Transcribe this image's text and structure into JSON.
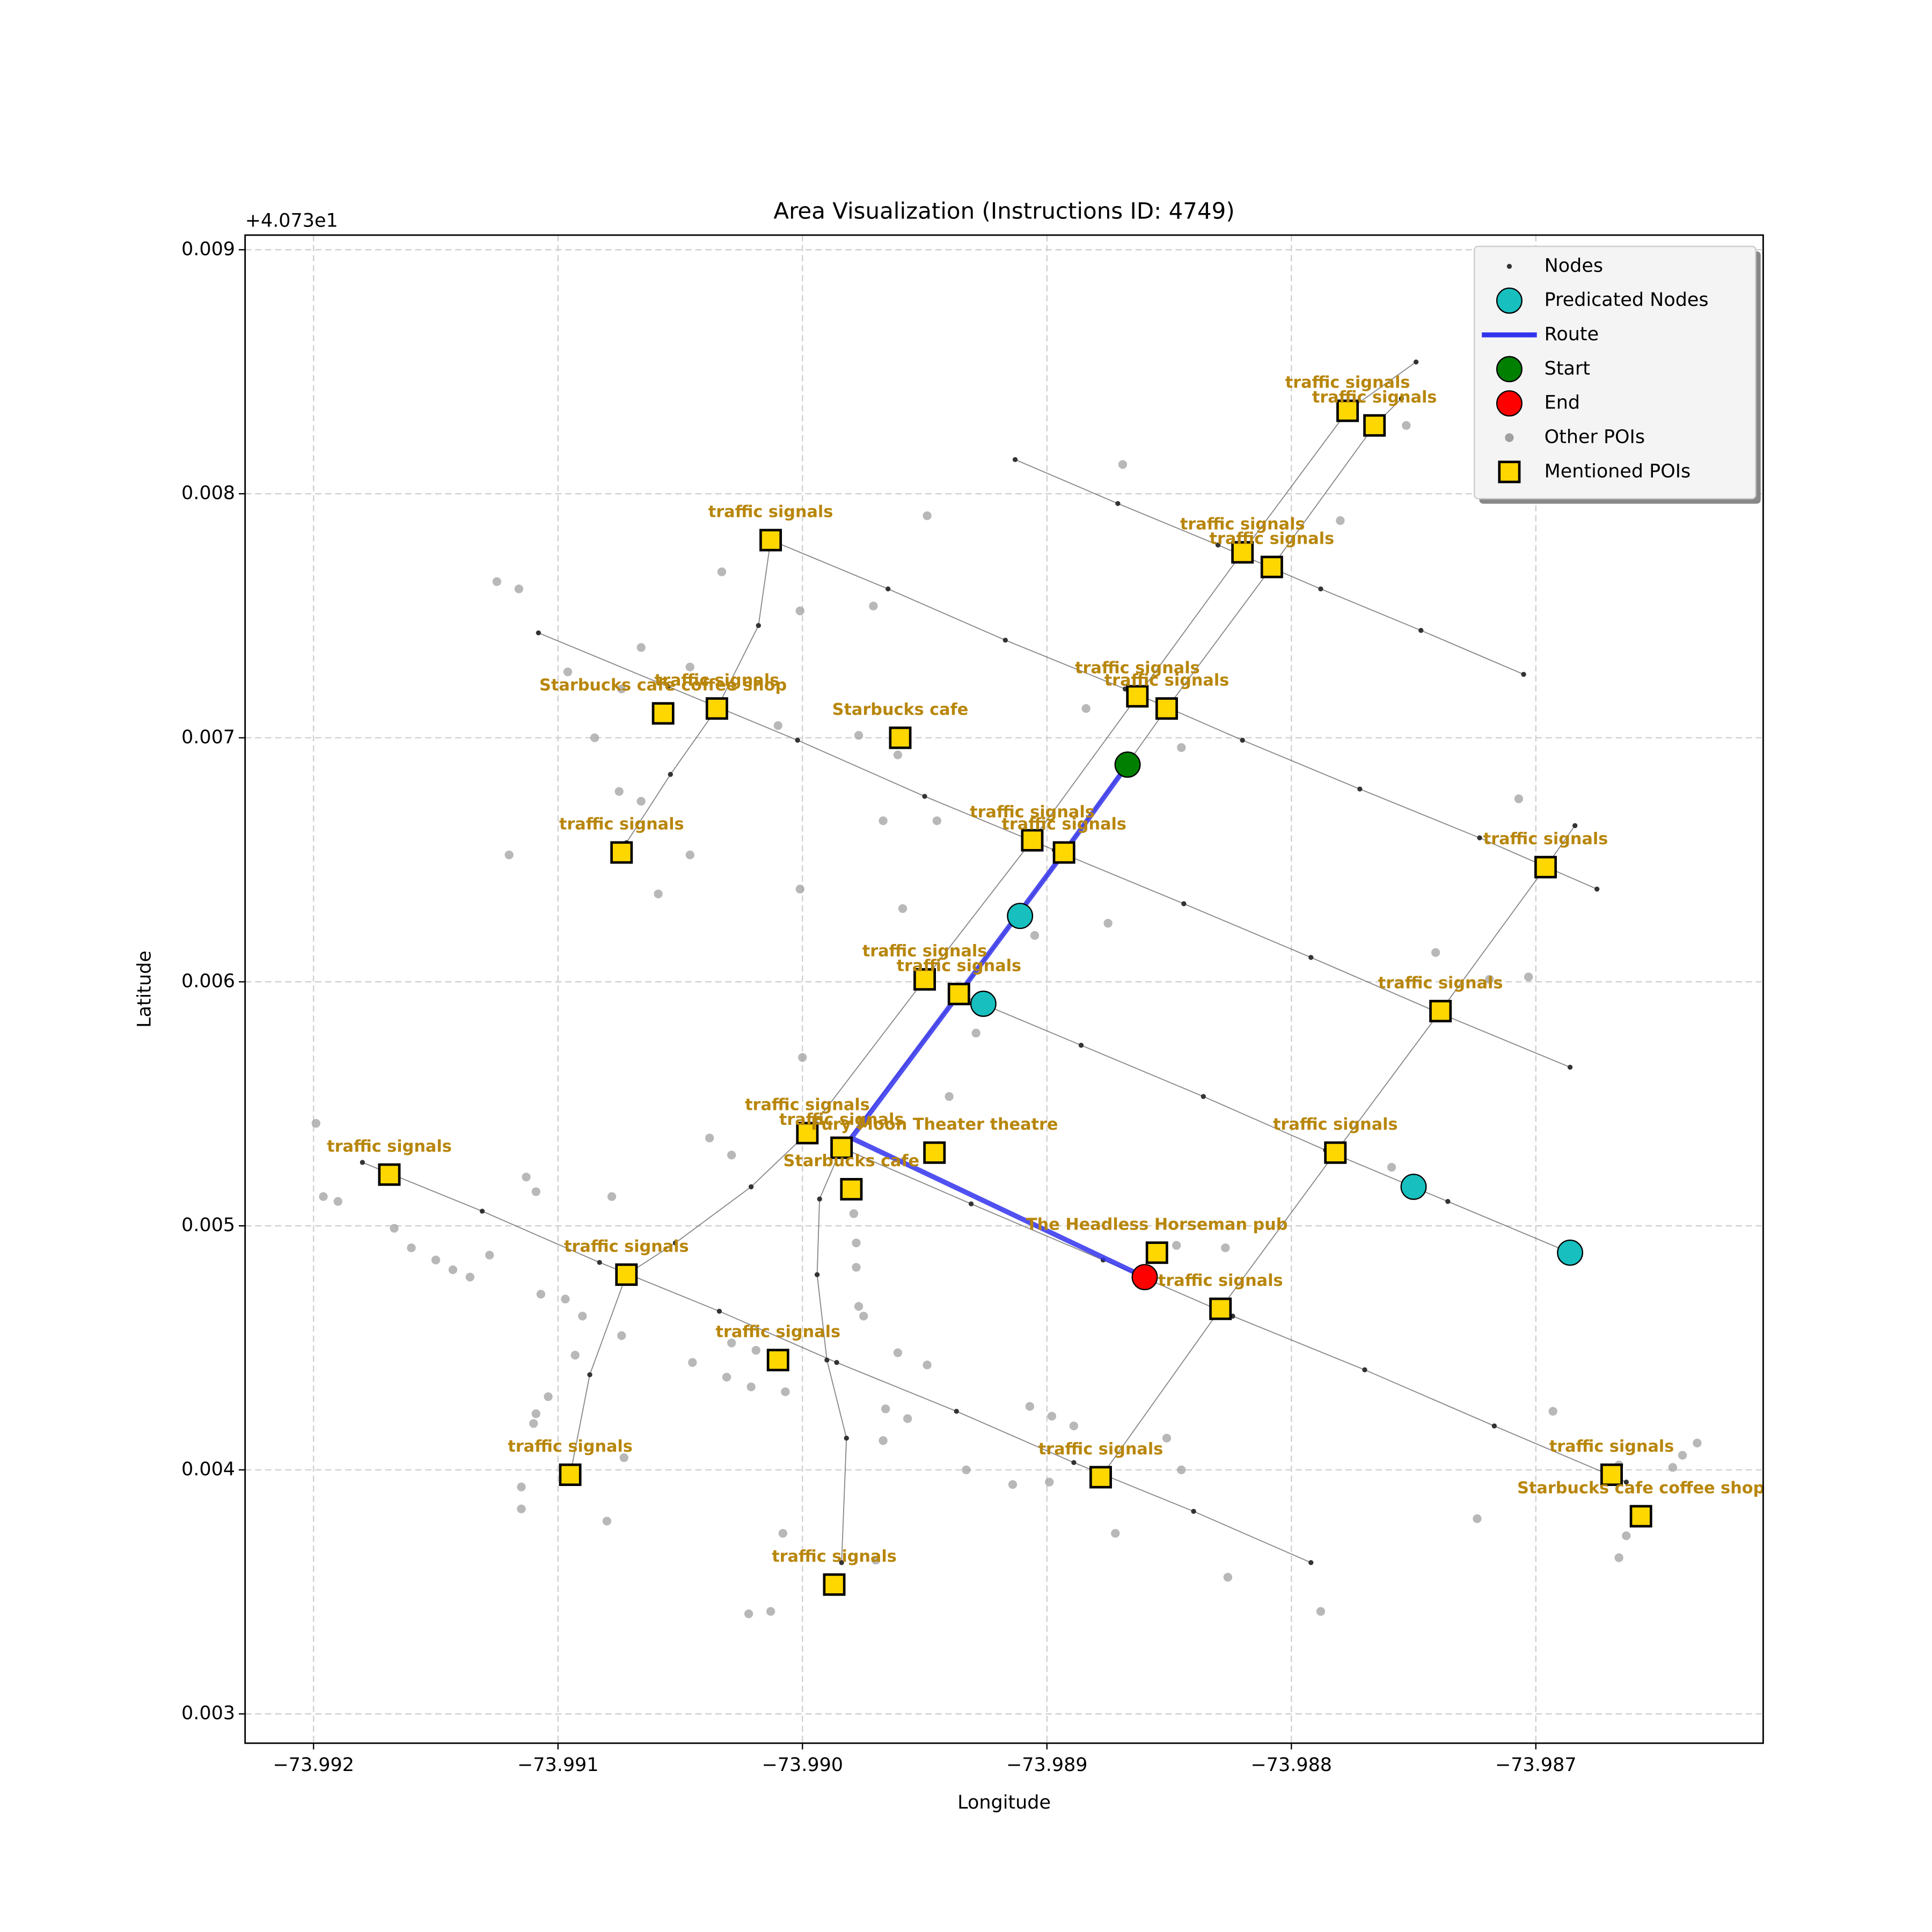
{
  "chart_data": {
    "type": "scatter",
    "title": "Area Visualization (Instructions ID: 4749)",
    "x_label": "Longitude",
    "y_label": "Latitude",
    "y_offset_text": "+4.073e1",
    "xlim": [
      -73.99228,
      -73.98607
    ],
    "ylim": [
      0.00288,
      0.00906
    ],
    "xticks": [
      {
        "value": -73.992,
        "label": "−73.992"
      },
      {
        "value": -73.991,
        "label": "−73.991"
      },
      {
        "value": -73.99,
        "label": "−73.990"
      },
      {
        "value": -73.989,
        "label": "−73.989"
      },
      {
        "value": -73.988,
        "label": "−73.988"
      },
      {
        "value": -73.987,
        "label": "−73.987"
      }
    ],
    "yticks": [
      0.003,
      0.004,
      0.005,
      0.006,
      0.007,
      0.008,
      0.009
    ],
    "grid": true,
    "legend": "upper right",
    "series": [
      {
        "name": "Nodes",
        "color": "#333333",
        "marker": "dot",
        "x": [
          -73.98913,
          -73.98871,
          -73.9883,
          -73.98788,
          -73.98747,
          -73.98705,
          null,
          -73.99013,
          -73.98965,
          -73.98917,
          -73.98868,
          -73.9882,
          -73.98772,
          -73.98723,
          -73.98675,
          null,
          -73.99108,
          -73.99055,
          -73.99002,
          -73.9895,
          -73.98897,
          -73.98844,
          -73.98792,
          -73.98739,
          -73.98686,
          null,
          -73.98936,
          -73.98886,
          -73.98836,
          -73.98786,
          -73.98736,
          -73.98686,
          null,
          -73.9918,
          -73.99131,
          -73.99083,
          -73.99034,
          -73.98986,
          -73.98937,
          -73.98889,
          -73.9884,
          -73.98792,
          null,
          -73.98984,
          -73.98931,
          -73.98877,
          -73.98824,
          -73.9877,
          -73.98717,
          -73.98663,
          null,
          -73.98749,
          -73.98777,
          -73.9882,
          -73.98863,
          -73.98906,
          -73.9895,
          -73.98998,
          -73.99021,
          -73.99052,
          -73.99072,
          -73.99087,
          -73.99095,
          null,
          -73.98755,
          -73.98766,
          -73.98808,
          -73.98851,
          -73.98893,
          -73.98936,
          -73.98984,
          -73.98993,
          -73.98994,
          -73.9899,
          -73.98982,
          -73.98984,
          null,
          -73.98684,
          -73.98696,
          -73.98739,
          -73.98782,
          -73.98829,
          -73.98878,
          null,
          -73.99013,
          -73.99018,
          -73.99035,
          -73.99054,
          -73.99072
        ],
        "values": [
          0.00814,
          0.00796,
          0.00779,
          0.00761,
          0.00744,
          0.00726,
          null,
          0.00781,
          0.00761,
          0.0074,
          0.0072,
          0.00699,
          0.00679,
          0.00659,
          0.00638,
          null,
          0.00743,
          0.00721,
          0.00699,
          0.00676,
          0.00654,
          0.00632,
          0.0061,
          0.00587,
          0.00565,
          null,
          0.00595,
          0.00574,
          0.00553,
          0.00531,
          0.0051,
          0.00489,
          null,
          0.00526,
          0.00506,
          0.00485,
          0.00465,
          0.00444,
          0.00424,
          0.00403,
          0.00383,
          0.00362,
          null,
          0.00532,
          0.00509,
          0.00486,
          0.00463,
          0.00441,
          0.00418,
          0.00395,
          null,
          0.00854,
          0.00834,
          0.00776,
          0.00717,
          0.00658,
          0.00601,
          0.00538,
          0.00516,
          0.00493,
          0.0048,
          0.00439,
          0.00398,
          null,
          0.00839,
          0.00828,
          0.0077,
          0.00712,
          0.00653,
          0.00595,
          0.00532,
          0.00511,
          0.0048,
          0.00445,
          0.00413,
          0.00362,
          null,
          0.00664,
          0.00647,
          0.00588,
          0.0053,
          0.00466,
          0.00397,
          null,
          0.00781,
          0.00746,
          0.00712,
          0.00685,
          0.00657
        ]
      },
      {
        "name": "Predicated Nodes",
        "color": "#17bfbf",
        "marker": "circle",
        "x": [
          -73.98911,
          -73.98926,
          -73.9875,
          -73.98686
        ],
        "values": [
          0.00627,
          0.00591,
          0.00516,
          0.00489
        ]
      },
      {
        "name": "Route",
        "color": "#3333ee",
        "marker": "line",
        "x": [
          -73.98867,
          -73.98893,
          -73.98936,
          -73.9898,
          -73.9886
        ],
        "values": [
          0.00689,
          0.00653,
          0.00595,
          0.00536,
          0.00479
        ]
      },
      {
        "name": "Start",
        "color": "#007f00",
        "marker": "circle",
        "x": [
          -73.98867
        ],
        "values": [
          0.00689
        ]
      },
      {
        "name": "End",
        "color": "#ff0000",
        "marker": "circle",
        "x": [
          -73.9886
        ],
        "values": [
          0.00479
        ]
      },
      {
        "name": "Other POIs",
        "color": "#a0a0a0",
        "marker": "dot-large",
        "x": [
          -73.99125,
          -73.99116,
          -73.99033,
          -73.98949,
          -73.98869,
          -73.9878,
          -73.98753,
          -73.98971,
          -73.99001,
          -73.99066,
          -73.99046,
          -73.99096,
          -73.99074,
          -73.9901,
          -73.99085,
          -73.98977,
          -73.98961,
          -73.98845,
          -73.98884,
          -73.99075,
          -73.99066,
          -73.99046,
          -73.9912,
          -73.99059,
          -73.99001,
          -73.98967,
          -73.98945,
          -73.98959,
          -73.98905,
          -73.98875,
          -73.98741,
          -73.98719,
          -73.98703,
          -73.98707,
          -73.98929,
          -73.9894,
          -73.99,
          -73.99038,
          -73.99029,
          -73.99199,
          -73.99196,
          -73.9919,
          -73.99167,
          -73.9916,
          -73.9915,
          -73.99143,
          -73.99136,
          -73.99128,
          -73.99113,
          -73.99109,
          -73.99078,
          -73.98979,
          -73.98978,
          -73.98978,
          -73.98977,
          -73.98975,
          -73.99107,
          -73.99097,
          -73.9909,
          -73.99074,
          -73.99029,
          -73.99019,
          -73.99045,
          -73.99031,
          -73.99021,
          -73.99007,
          -73.99093,
          -73.98961,
          -73.98949,
          -73.98966,
          -73.98957,
          -73.98967,
          -73.99104,
          -73.99109,
          -73.9911,
          -73.99115,
          -73.99115,
          -73.99073,
          -73.9908,
          -73.98907,
          -73.98898,
          -73.98889,
          -73.98851,
          -73.98845,
          -73.98899,
          -73.98914,
          -73.98933,
          -73.98872,
          -73.99008,
          -73.99022,
          -73.99013,
          -73.9897,
          -73.98826,
          -73.98788,
          -73.98724,
          -73.98693,
          -73.98666,
          -73.98663,
          -73.98666,
          -73.98644,
          -73.9864,
          -73.98634,
          -73.98759,
          -73.98827,
          -73.98847
        ],
        "values": [
          0.00764,
          0.00761,
          0.00768,
          0.00791,
          0.00812,
          0.00789,
          0.00828,
          0.00754,
          0.00752,
          0.00737,
          0.00729,
          0.00727,
          0.0072,
          0.00705,
          0.007,
          0.00701,
          0.00693,
          0.00696,
          0.00712,
          0.00678,
          0.00674,
          0.00652,
          0.00652,
          0.00636,
          0.00638,
          0.00666,
          0.00666,
          0.0063,
          0.00619,
          0.00624,
          0.00612,
          0.00601,
          0.00602,
          0.00675,
          0.00579,
          0.00553,
          0.00569,
          0.00536,
          0.00529,
          0.00542,
          0.00512,
          0.0051,
          0.00499,
          0.00491,
          0.00486,
          0.00482,
          0.00479,
          0.00488,
          0.0052,
          0.00514,
          0.00512,
          0.00505,
          0.00493,
          0.00483,
          0.00467,
          0.00463,
          0.00472,
          0.0047,
          0.00463,
          0.00455,
          0.00452,
          0.00449,
          0.00444,
          0.00438,
          0.00434,
          0.00432,
          0.00447,
          0.00448,
          0.00443,
          0.00425,
          0.00421,
          0.00412,
          0.0043,
          0.00423,
          0.00419,
          0.00393,
          0.00384,
          0.00405,
          0.00379,
          0.00426,
          0.00422,
          0.00418,
          0.00413,
          0.004,
          0.00395,
          0.00394,
          0.004,
          0.00374,
          0.00374,
          0.00341,
          0.00342,
          0.00363,
          0.00356,
          0.00342,
          0.0038,
          0.00424,
          0.00402,
          0.00373,
          0.00364,
          0.00401,
          0.00406,
          0.00411,
          0.00524,
          0.00491,
          0.00492
        ]
      },
      {
        "name": "Mentioned POIs",
        "color": "#ffd700",
        "marker": "square",
        "label_color": "#b8860b",
        "x": [
          -73.99013,
          -73.98777,
          -73.98766,
          -73.9882,
          -73.98808,
          -73.99057,
          -73.99035,
          -73.9896,
          -73.98863,
          -73.98851,
          -73.99074,
          -73.98906,
          -73.98893,
          -73.98696,
          -73.9895,
          -73.98936,
          -73.98739,
          -73.98998,
          -73.98984,
          -73.98946,
          -73.9898,
          -73.98782,
          -73.99169,
          -73.98855,
          -73.99072,
          -73.98829,
          -73.9901,
          -73.99095,
          -73.98878,
          -73.98669,
          -73.98657,
          -73.98987
        ],
        "values": [
          0.00781,
          0.00834,
          0.00828,
          0.00776,
          0.0077,
          0.0071,
          0.00712,
          0.007,
          0.00717,
          0.00712,
          0.00653,
          0.00658,
          0.00653,
          0.00647,
          0.00601,
          0.00595,
          0.00588,
          0.00538,
          0.00532,
          0.0053,
          0.00515,
          0.0053,
          0.00521,
          0.00489,
          0.0048,
          0.00466,
          0.00445,
          0.00398,
          0.00397,
          0.00398,
          0.00381,
          0.00353
        ],
        "labels": [
          "traffic signals",
          "traffic signals",
          "traffic signals",
          "traffic signals",
          "traffic signals",
          "Starbucks cafe coffee shop",
          "traffic signals",
          "Starbucks cafe",
          "traffic signals",
          "traffic signals",
          "traffic signals",
          "traffic signals",
          "traffic signals",
          "traffic signals",
          "traffic signals",
          "traffic signals",
          "traffic signals",
          "traffic signals",
          "traffic signals",
          "Fury Moon Theater theatre",
          "Starbucks cafe",
          "traffic signals",
          "traffic signals",
          "The Headless Horseman pub",
          "traffic signals",
          "traffic signals",
          "traffic signals",
          "traffic signals",
          "traffic signals",
          "traffic signals",
          "Starbucks cafe coffee shop",
          "traffic signals"
        ]
      }
    ]
  }
}
